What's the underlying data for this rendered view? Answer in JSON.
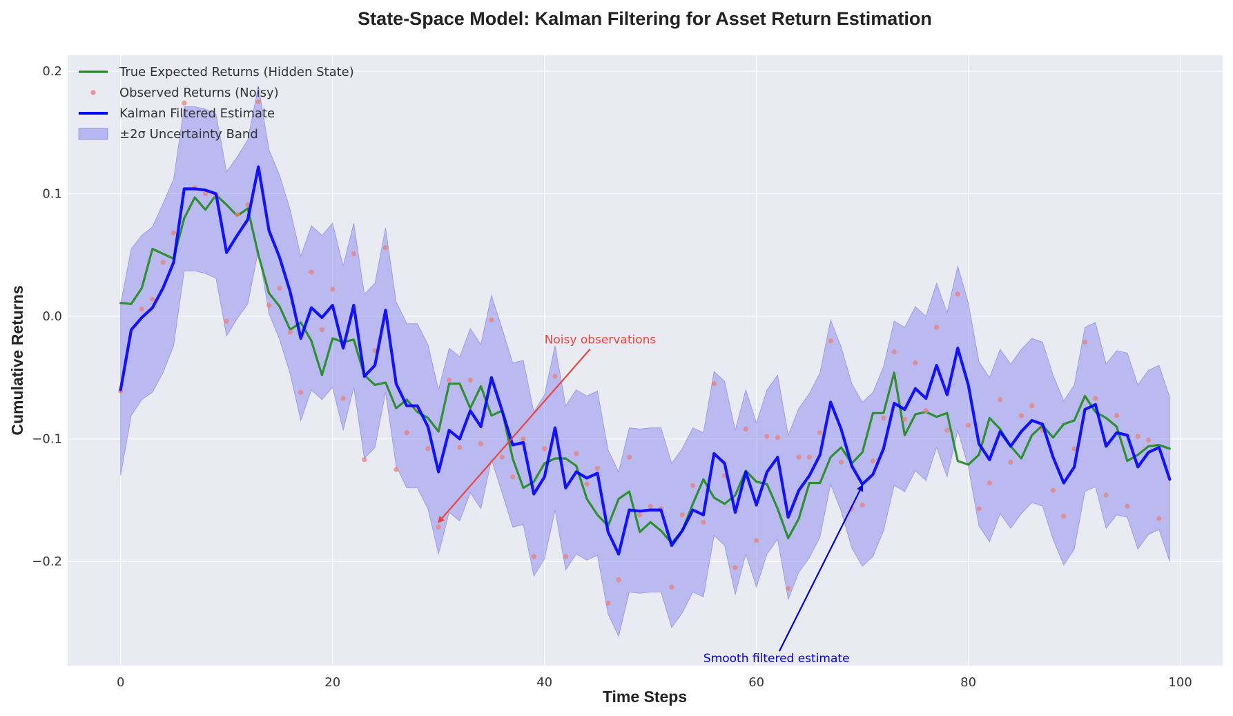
{
  "chart_data": {
    "type": "line",
    "title": "State-Space Model: Kalman Filtering for Asset Return Estimation",
    "xlabel": "Time Steps",
    "ylabel": "Cumulative Returns",
    "xlim": [
      -5,
      104
    ],
    "ylim": [
      -0.285,
      0.213
    ],
    "xticks": [
      0,
      20,
      40,
      60,
      80,
      100
    ],
    "yticks": [
      -0.2,
      -0.1,
      0.0,
      0.1,
      0.2
    ],
    "xtick_labels": [
      "0",
      "20",
      "40",
      "60",
      "80",
      "100"
    ],
    "ytick_labels": [
      "−0.2",
      "−0.1",
      "0.0",
      "0.1",
      "0.2"
    ],
    "grid": true,
    "legend_position": "upper left",
    "legend": [
      {
        "label": "True Expected Returns (Hidden State)",
        "kind": "line",
        "color": "#228B22"
      },
      {
        "label": "Observed Returns (Noisy)",
        "kind": "marker",
        "color": "#E8807A"
      },
      {
        "label": "Kalman Filtered Estimate",
        "kind": "line",
        "color": "#0000FF"
      },
      {
        "label": "±2σ Uncertainty Band",
        "kind": "band",
        "color": "#8A8AF0"
      }
    ],
    "colors": {
      "true": "#228B22",
      "observed": "#E8807A",
      "filtered": "#0000FF",
      "band_fill": "#8A8AF0",
      "band_edge": "#7070E0",
      "plot_bg": "#EAEAF2",
      "annotation_red": "#E8463A",
      "annotation_blue": "#0000DD"
    },
    "x": [
      0,
      1,
      2,
      3,
      4,
      5,
      6,
      7,
      8,
      9,
      10,
      11,
      12,
      13,
      14,
      15,
      16,
      17,
      18,
      19,
      20,
      21,
      22,
      23,
      24,
      25,
      26,
      27,
      28,
      29,
      30,
      31,
      32,
      33,
      34,
      35,
      36,
      37,
      38,
      39,
      40,
      41,
      42,
      43,
      44,
      45,
      46,
      47,
      48,
      49,
      50,
      51,
      52,
      53,
      54,
      55,
      56,
      57,
      58,
      59,
      60,
      61,
      62,
      63,
      64,
      65,
      66,
      67,
      68,
      69,
      70,
      71,
      72,
      73,
      74,
      75,
      76,
      77,
      78,
      79,
      80,
      81,
      82,
      83,
      84,
      85,
      86,
      87,
      88,
      89,
      90,
      91,
      92,
      93,
      94,
      95,
      96,
      97,
      98,
      99
    ],
    "series": [
      {
        "name": "True Expected Returns (Hidden State)",
        "values": [
          0.011,
          0.01,
          0.023,
          0.055,
          0.051,
          0.047,
          0.08,
          0.097,
          0.087,
          0.099,
          0.091,
          0.082,
          0.088,
          0.05,
          0.019,
          0.008,
          -0.011,
          -0.005,
          -0.02,
          -0.048,
          -0.018,
          -0.021,
          -0.019,
          -0.048,
          -0.056,
          -0.054,
          -0.075,
          -0.068,
          -0.078,
          -0.083,
          -0.094,
          -0.055,
          -0.055,
          -0.075,
          -0.057,
          -0.081,
          -0.077,
          -0.116,
          -0.14,
          -0.135,
          -0.12,
          -0.116,
          -0.116,
          -0.122,
          -0.149,
          -0.162,
          -0.171,
          -0.149,
          -0.143,
          -0.176,
          -0.168,
          -0.175,
          -0.185,
          -0.175,
          -0.153,
          -0.133,
          -0.148,
          -0.153,
          -0.146,
          -0.126,
          -0.135,
          -0.137,
          -0.157,
          -0.181,
          -0.165,
          -0.136,
          -0.136,
          -0.115,
          -0.107,
          -0.12,
          -0.111,
          -0.079,
          -0.079,
          -0.046,
          -0.097,
          -0.08,
          -0.078,
          -0.082,
          -0.079,
          -0.118,
          -0.121,
          -0.113,
          -0.083,
          -0.092,
          -0.106,
          -0.116,
          -0.097,
          -0.089,
          -0.099,
          -0.088,
          -0.085,
          -0.065,
          -0.078,
          -0.083,
          -0.09,
          -0.118,
          -0.113,
          -0.106,
          -0.105,
          -0.108
        ]
      },
      {
        "name": "Observed Returns (Noisy)",
        "values": [
          -0.061,
          null,
          0.006,
          0.014,
          0.044,
          0.068,
          0.174,
          0.105,
          0.1,
          0.098,
          -0.004,
          0.083,
          0.091,
          0.175,
          0.009,
          0.023,
          -0.013,
          -0.062,
          0.036,
          -0.011,
          0.022,
          -0.067,
          0.051,
          -0.117,
          -0.028,
          0.056,
          -0.125,
          -0.095,
          -0.075,
          -0.108,
          -0.172,
          -0.052,
          -0.107,
          -0.052,
          -0.104,
          -0.003,
          -0.115,
          -0.131,
          -0.1,
          -0.196,
          -0.108,
          -0.049,
          -0.196,
          -0.112,
          -0.137,
          -0.124,
          -0.234,
          -0.215,
          -0.115,
          -0.162,
          -0.155,
          -0.157,
          -0.221,
          -0.162,
          -0.138,
          -0.168,
          -0.055,
          -0.13,
          -0.205,
          -0.092,
          -0.183,
          -0.098,
          -0.099,
          -0.222,
          -0.115,
          -0.115,
          -0.095,
          -0.02,
          -0.119,
          -0.157,
          -0.154,
          -0.118,
          -0.083,
          -0.029,
          -0.084,
          -0.038,
          -0.077,
          -0.009,
          -0.093,
          0.018,
          -0.089,
          -0.157,
          -0.136,
          -0.068,
          -0.119,
          -0.081,
          -0.073,
          -0.093,
          -0.142,
          -0.163,
          -0.108,
          -0.021,
          -0.067,
          -0.146,
          -0.081,
          -0.155,
          -0.098,
          -0.101,
          -0.165,
          null
        ]
      },
      {
        "name": "Kalman Filtered Estimate",
        "values": [
          -0.06,
          -0.011,
          -0.001,
          0.007,
          0.023,
          0.044,
          0.104,
          0.104,
          0.103,
          0.1,
          0.052,
          0.066,
          0.079,
          0.122,
          0.07,
          0.048,
          0.02,
          -0.018,
          0.007,
          -0.001,
          0.009,
          -0.026,
          0.009,
          -0.049,
          -0.04,
          0.005,
          -0.055,
          -0.073,
          -0.073,
          -0.09,
          -0.127,
          -0.093,
          -0.1,
          -0.077,
          -0.09,
          -0.05,
          -0.077,
          -0.105,
          -0.103,
          -0.145,
          -0.131,
          -0.091,
          -0.14,
          -0.127,
          -0.132,
          -0.128,
          -0.176,
          -0.194,
          -0.158,
          -0.159,
          -0.158,
          -0.158,
          -0.187,
          -0.175,
          -0.158,
          -0.162,
          -0.112,
          -0.12,
          -0.16,
          -0.127,
          -0.154,
          -0.127,
          -0.115,
          -0.164,
          -0.142,
          -0.13,
          -0.113,
          -0.07,
          -0.092,
          -0.122,
          -0.137,
          -0.129,
          -0.108,
          -0.071,
          -0.076,
          -0.059,
          -0.067,
          -0.04,
          -0.064,
          -0.026,
          -0.056,
          -0.104,
          -0.117,
          -0.094,
          -0.106,
          -0.094,
          -0.085,
          -0.088,
          -0.115,
          -0.136,
          -0.123,
          -0.076,
          -0.072,
          -0.106,
          -0.095,
          -0.097,
          -0.123,
          -0.111,
          -0.107,
          -0.133
        ]
      }
    ],
    "band": {
      "name": "±2σ Uncertainty Band",
      "upper": [
        0.01,
        0.055,
        0.066,
        0.073,
        0.092,
        0.112,
        0.171,
        0.171,
        0.169,
        0.165,
        0.118,
        0.13,
        0.144,
        0.188,
        0.136,
        0.115,
        0.087,
        0.049,
        0.074,
        0.066,
        0.076,
        0.041,
        0.076,
        0.018,
        0.027,
        0.072,
        0.012,
        -0.006,
        -0.006,
        -0.023,
        -0.06,
        -0.026,
        -0.033,
        -0.01,
        -0.023,
        0.017,
        -0.01,
        -0.038,
        -0.036,
        -0.078,
        -0.064,
        -0.024,
        -0.073,
        -0.06,
        -0.065,
        -0.061,
        -0.109,
        -0.127,
        -0.091,
        -0.092,
        -0.091,
        -0.091,
        -0.12,
        -0.108,
        -0.091,
        -0.095,
        -0.045,
        -0.053,
        -0.093,
        -0.06,
        -0.087,
        -0.06,
        -0.048,
        -0.097,
        -0.075,
        -0.063,
        -0.046,
        -0.003,
        -0.025,
        -0.055,
        -0.07,
        -0.062,
        -0.041,
        -0.004,
        -0.009,
        0.008,
        0.0,
        0.027,
        0.003,
        0.041,
        0.011,
        -0.037,
        -0.05,
        -0.027,
        -0.039,
        -0.027,
        -0.018,
        -0.021,
        -0.048,
        -0.069,
        -0.056,
        -0.009,
        -0.005,
        -0.039,
        -0.028,
        -0.03,
        -0.056,
        -0.044,
        -0.04,
        -0.066
      ],
      "lower": [
        -0.13,
        -0.081,
        -0.068,
        -0.062,
        -0.046,
        -0.024,
        0.037,
        0.037,
        0.035,
        0.031,
        -0.016,
        -0.002,
        0.01,
        0.054,
        0.002,
        -0.019,
        -0.047,
        -0.085,
        -0.06,
        -0.068,
        -0.058,
        -0.093,
        -0.058,
        -0.116,
        -0.107,
        -0.062,
        -0.122,
        -0.14,
        -0.14,
        -0.157,
        -0.194,
        -0.16,
        -0.167,
        -0.144,
        -0.157,
        -0.117,
        -0.144,
        -0.172,
        -0.17,
        -0.212,
        -0.198,
        -0.158,
        -0.207,
        -0.194,
        -0.199,
        -0.195,
        -0.243,
        -0.261,
        -0.225,
        -0.226,
        -0.225,
        -0.225,
        -0.254,
        -0.242,
        -0.225,
        -0.229,
        -0.179,
        -0.187,
        -0.227,
        -0.194,
        -0.221,
        -0.194,
        -0.182,
        -0.231,
        -0.209,
        -0.197,
        -0.18,
        -0.137,
        -0.159,
        -0.189,
        -0.204,
        -0.196,
        -0.175,
        -0.138,
        -0.143,
        -0.126,
        -0.134,
        -0.107,
        -0.131,
        -0.093,
        -0.123,
        -0.171,
        -0.184,
        -0.161,
        -0.173,
        -0.161,
        -0.152,
        -0.155,
        -0.182,
        -0.203,
        -0.19,
        -0.143,
        -0.139,
        -0.173,
        -0.162,
        -0.164,
        -0.19,
        -0.178,
        -0.174,
        -0.2
      ]
    },
    "annotations": [
      {
        "text": "Noisy observations",
        "xy": [
          30,
          -0.168
        ],
        "xytext": [
          40,
          -0.02
        ],
        "color": "#E8463A"
      },
      {
        "text": "Smooth filtered estimate",
        "xy": [
          70,
          -0.138
        ],
        "xytext": [
          55,
          -0.28
        ],
        "color": "#0000DD"
      }
    ]
  }
}
